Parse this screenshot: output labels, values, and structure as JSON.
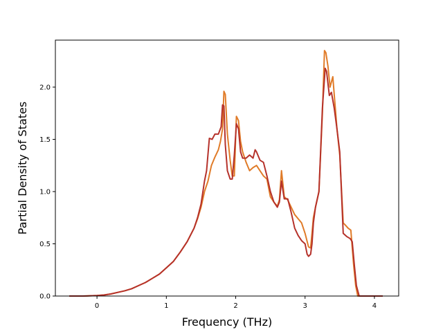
{
  "chart_data": {
    "type": "line",
    "title": "",
    "xlabel": "Frequency (THz)",
    "ylabel": "Partial Density of States",
    "xlim": [
      -0.6,
      4.35
    ],
    "ylim": [
      0.0,
      2.45
    ],
    "xticks": [
      0,
      1,
      2,
      3,
      4
    ],
    "xtick_labels": [
      "0",
      "1",
      "2",
      "3",
      "4"
    ],
    "yticks": [
      0.0,
      0.5,
      1.0,
      1.5,
      2.0
    ],
    "ytick_labels": [
      "0.0",
      "0.5",
      "1.0",
      "1.5",
      "2.0"
    ],
    "grid": false,
    "series": [
      {
        "color": "#e07b28",
        "x": [
          -0.4,
          -0.2,
          0.0,
          0.1,
          0.2,
          0.3,
          0.4,
          0.5,
          0.6,
          0.7,
          0.8,
          0.9,
          1.0,
          1.1,
          1.2,
          1.3,
          1.4,
          1.45,
          1.5,
          1.55,
          1.6,
          1.65,
          1.7,
          1.75,
          1.78,
          1.81,
          1.83,
          1.85,
          1.88,
          1.92,
          1.95,
          1.98,
          2.01,
          2.04,
          2.07,
          2.1,
          2.15,
          2.2,
          2.25,
          2.3,
          2.35,
          2.4,
          2.45,
          2.5,
          2.55,
          2.6,
          2.63,
          2.66,
          2.7,
          2.75,
          2.8,
          2.85,
          2.9,
          2.95,
          3.0,
          3.05,
          3.08,
          3.1,
          3.12,
          3.15,
          3.2,
          3.25,
          3.28,
          3.3,
          3.33,
          3.36,
          3.4,
          3.43,
          3.46,
          3.5,
          3.55,
          3.58,
          3.62,
          3.66,
          3.7,
          3.73,
          3.76,
          3.8,
          3.9,
          4.0,
          4.12
        ],
        "y": [
          0.0,
          0.0,
          0.005,
          0.01,
          0.02,
          0.035,
          0.05,
          0.07,
          0.1,
          0.13,
          0.17,
          0.21,
          0.27,
          0.33,
          0.42,
          0.52,
          0.65,
          0.74,
          0.85,
          1.0,
          1.1,
          1.25,
          1.33,
          1.4,
          1.48,
          1.6,
          1.96,
          1.93,
          1.55,
          1.3,
          1.15,
          1.15,
          1.72,
          1.68,
          1.48,
          1.38,
          1.28,
          1.2,
          1.23,
          1.25,
          1.2,
          1.15,
          1.12,
          0.95,
          0.9,
          0.86,
          0.92,
          1.2,
          0.95,
          0.92,
          0.85,
          0.78,
          0.74,
          0.7,
          0.6,
          0.47,
          0.46,
          0.6,
          0.75,
          0.85,
          1.0,
          1.75,
          2.35,
          2.33,
          2.2,
          2.0,
          2.1,
          1.85,
          1.6,
          1.35,
          0.7,
          0.68,
          0.65,
          0.63,
          0.3,
          0.1,
          0.0,
          0.0,
          0.0,
          0.0,
          0.0
        ]
      },
      {
        "color": "#b5312a",
        "x": [
          -0.4,
          -0.2,
          0.0,
          0.1,
          0.2,
          0.3,
          0.4,
          0.5,
          0.6,
          0.7,
          0.8,
          0.9,
          1.0,
          1.1,
          1.2,
          1.3,
          1.4,
          1.45,
          1.5,
          1.55,
          1.58,
          1.62,
          1.66,
          1.7,
          1.75,
          1.79,
          1.81,
          1.83,
          1.85,
          1.88,
          1.92,
          1.95,
          1.98,
          2.01,
          2.04,
          2.07,
          2.1,
          2.15,
          2.2,
          2.25,
          2.28,
          2.3,
          2.35,
          2.4,
          2.45,
          2.5,
          2.55,
          2.6,
          2.63,
          2.66,
          2.7,
          2.75,
          2.8,
          2.85,
          2.9,
          2.95,
          3.0,
          3.03,
          3.05,
          3.08,
          3.1,
          3.12,
          3.15,
          3.2,
          3.25,
          3.29,
          3.31,
          3.35,
          3.38,
          3.42,
          3.46,
          3.5,
          3.55,
          3.6,
          3.65,
          3.68,
          3.71,
          3.74,
          3.78,
          3.9,
          4.0,
          4.12
        ],
        "y": [
          0.0,
          0.0,
          0.005,
          0.01,
          0.02,
          0.035,
          0.05,
          0.07,
          0.1,
          0.13,
          0.17,
          0.21,
          0.27,
          0.33,
          0.42,
          0.52,
          0.65,
          0.75,
          0.88,
          1.1,
          1.2,
          1.51,
          1.5,
          1.55,
          1.55,
          1.62,
          1.83,
          1.82,
          1.45,
          1.2,
          1.12,
          1.12,
          1.35,
          1.65,
          1.6,
          1.38,
          1.32,
          1.32,
          1.35,
          1.32,
          1.4,
          1.38,
          1.3,
          1.28,
          1.15,
          1.0,
          0.9,
          0.85,
          0.9,
          1.1,
          0.93,
          0.93,
          0.8,
          0.65,
          0.58,
          0.53,
          0.5,
          0.4,
          0.38,
          0.4,
          0.5,
          0.7,
          0.85,
          1.0,
          1.8,
          2.18,
          2.15,
          1.92,
          1.95,
          1.8,
          1.6,
          1.38,
          0.6,
          0.57,
          0.55,
          0.52,
          0.3,
          0.1,
          0.0,
          0.0,
          0.0,
          0.0
        ]
      }
    ]
  }
}
